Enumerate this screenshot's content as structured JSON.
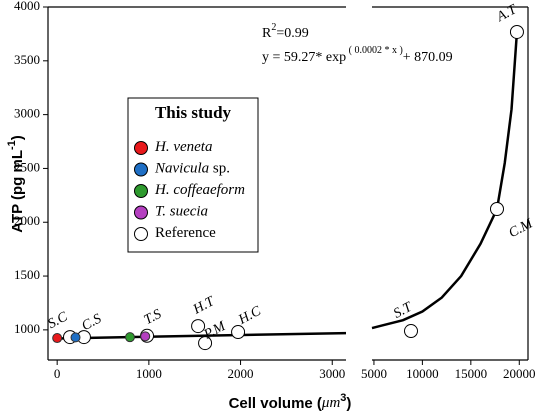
{
  "chart_data": {
    "type": "scatter",
    "y_label": {
      "text": "ATP (pg mL",
      "sup": "-1",
      "tail": ")"
    },
    "x_label": {
      "text": "Cell volume (",
      "unit": "μm",
      "sup": "3",
      "tail": ")"
    },
    "annotation": {
      "r2": {
        "text": "R",
        "sup": "2",
        "tail": "=0.99"
      },
      "equation": {
        "text": "y = 59.27* exp",
        "sup": " ( 0.0002 * x )",
        "tail": "+ 870.09"
      }
    },
    "ylim": [
      720,
      4000
    ],
    "yticks": [
      1000,
      1500,
      2000,
      2500,
      3000,
      3500,
      4000
    ],
    "panels": [
      {
        "xlim": [
          -100,
          3150
        ],
        "xticks": [
          0,
          1000,
          2000,
          3000
        ],
        "fit": {
          "x": [
            0,
            3150
          ],
          "y": [
            920,
            970
          ]
        }
      },
      {
        "xlim": [
          4800,
          20900
        ],
        "xticks": [
          5000,
          10000,
          15000,
          20000
        ],
        "fit": {
          "x": [
            4800,
            8000,
            10000,
            12000,
            14000,
            16000,
            17700,
            18500,
            19200,
            19760
          ],
          "y": [
            1017,
            1090,
            1170,
            1300,
            1500,
            1800,
            2123,
            2550,
            3050,
            3768
          ]
        }
      }
    ],
    "legend": {
      "title": "This study"
    },
    "series": [
      {
        "name": "H. veneta",
        "italic": true,
        "color": "#e8191c",
        "x": [
          0
        ],
        "y": [
          924
        ]
      },
      {
        "name": "Navicula",
        "suffix": " sp.",
        "italic": true,
        "color": "#1f6fc5",
        "x": [
          200
        ],
        "y": [
          930
        ]
      },
      {
        "name": "H. coffeaeform",
        "italic": true,
        "color": "#2e9a2e",
        "x": [
          794
        ],
        "y": [
          932
        ]
      },
      {
        "name": "T. suecia",
        "italic": true,
        "color": "#b43fc0",
        "x": [
          960
        ],
        "y": [
          940
        ]
      },
      {
        "name": "Reference",
        "italic": false,
        "color": "#ffffff",
        "x": [
          140,
          292,
          980,
          1537,
          1613,
          1973,
          8825,
          17700,
          19760
        ],
        "y": [
          933,
          933,
          945,
          1035,
          877,
          980,
          989,
          2123,
          3768
        ],
        "labels": [
          "S.C",
          "C.S",
          "T.S",
          "H.T",
          "P.M",
          "H.C",
          "S.T",
          "C.M",
          "A.T"
        ]
      }
    ]
  }
}
